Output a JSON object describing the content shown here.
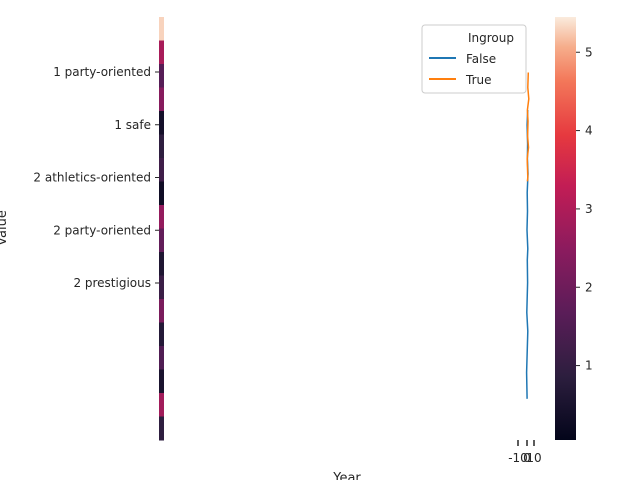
{
  "chart_data": {
    "type": "line",
    "xlabel": "Year",
    "ylabel": "Value",
    "y_categories": [
      "1 party-oriented",
      "1 safe",
      "2 athletics-oriented",
      "2 party-oriented",
      "2 prestigious"
    ],
    "x_tick_labels": [
      "-10",
      "0",
      "10"
    ],
    "legend": {
      "title": "Ingroup",
      "placement": "top-right",
      "entries": [
        {
          "label": "False",
          "color": "#1f77b4"
        },
        {
          "label": "True",
          "color": "#ff7f0e"
        }
      ]
    },
    "colorbar": {
      "range": [
        0.05,
        5.45
      ],
      "ticks": [
        1,
        2,
        3,
        4,
        5
      ],
      "colormap": "rocket"
    },
    "series": [
      {
        "name": "False",
        "color": "#1f77b4",
        "x": [
          0.2,
          -0.6,
          1.2,
          -0.3,
          0.9,
          0.4,
          1.1,
          0.0,
          0.7,
          0.3,
          1.4,
          0.6,
          0.9,
          0.1,
          1.0
        ],
        "y": [
          0.55,
          0.9,
          1.45,
          1.7,
          2.1,
          2.4,
          2.55,
          2.8,
          3.05,
          3.3,
          3.55,
          3.75,
          3.95,
          4.2,
          4.4
        ]
      },
      {
        "name": "True",
        "color": "#ff7f0e",
        "x": [
          0.6,
          1.1,
          0.3,
          2.2,
          0.8,
          1.5,
          0.5,
          2.6,
          1.2,
          1.9
        ],
        "y": [
          3.45,
          3.5,
          3.75,
          3.9,
          4.05,
          4.25,
          4.4,
          4.55,
          4.7,
          4.9
        ]
      }
    ],
    "heatmap_column_values": [
      5.3,
      2.9,
      1.6,
      2.4,
      0.4,
      0.9,
      1.2,
      0.3,
      2.6,
      1.8,
      0.6,
      1.1,
      2.2,
      0.7,
      1.5,
      0.5,
      2.8,
      0.9
    ]
  }
}
